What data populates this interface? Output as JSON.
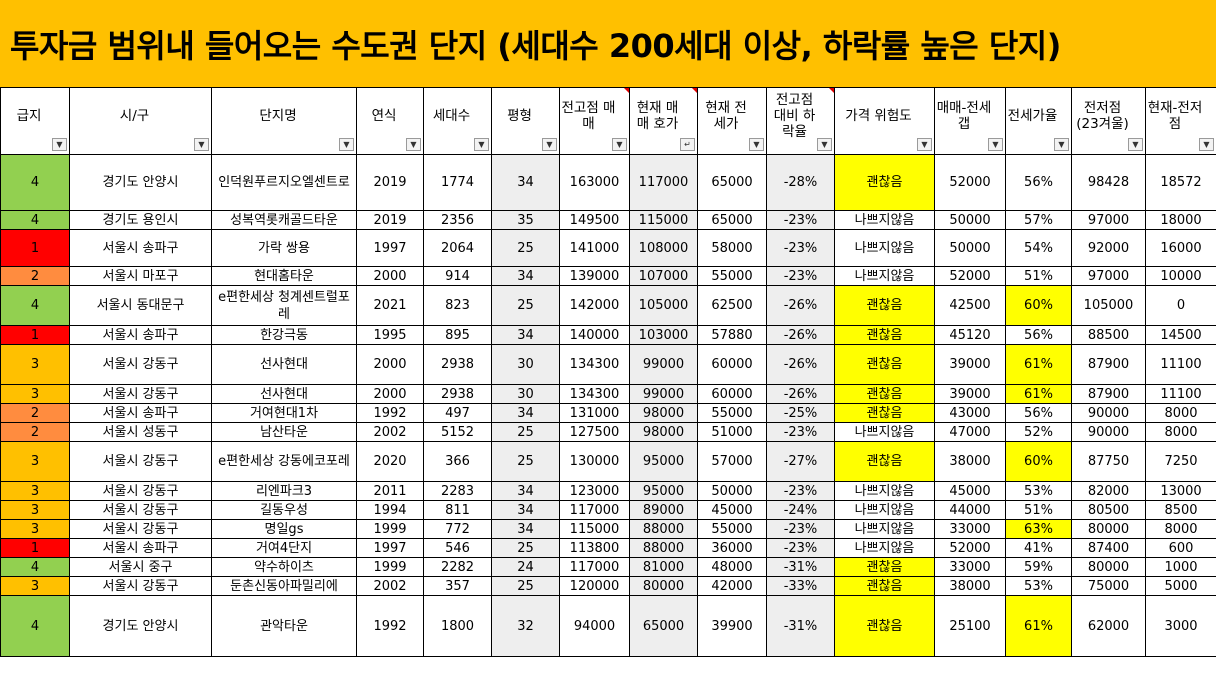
{
  "title": "투자금 범위내 들어오는 수도권 단지 (세대수 200세대 이상, 하락률 높은 단지)",
  "colors": {
    "banner": "#FFC000",
    "grade": {
      "1": "#FF0000",
      "2": "#FF8C3F",
      "3": "#FFC000",
      "4": "#92D050"
    },
    "highlight": "#FFFF00",
    "shaded": "#EEEEEE"
  },
  "columns": [
    {
      "label": "급지",
      "filter_icon": "dropdown-arrow-icon"
    },
    {
      "label": "시/구",
      "filter_icon": "dropdown-arrow-icon"
    },
    {
      "label": "단지명",
      "filter_icon": "dropdown-arrow-icon"
    },
    {
      "label": "연식",
      "filter_icon": "dropdown-arrow-icon"
    },
    {
      "label": "세대수",
      "filter_icon": "dropdown-arrow-icon"
    },
    {
      "label": "평형",
      "filter_icon": "dropdown-arrow-icon"
    },
    {
      "label": "전고점 매매",
      "filter_icon": "dropdown-arrow-icon"
    },
    {
      "label": "현재 매매 호가",
      "filter_icon": "sort-descending-icon"
    },
    {
      "label": "현재 전 세가",
      "filter_icon": "dropdown-arrow-icon"
    },
    {
      "label": "전고점 대비 하락율",
      "filter_icon": "dropdown-arrow-icon"
    },
    {
      "label": "가격 위험도",
      "filter_icon": "dropdown-arrow-icon"
    },
    {
      "label": "매매-전세갭",
      "filter_icon": "dropdown-arrow-icon"
    },
    {
      "label": "전세가율",
      "filter_icon": "dropdown-arrow-icon"
    },
    {
      "label": "전저점 (23겨울)",
      "filter_icon": "dropdown-arrow-icon"
    },
    {
      "label": "현재-전저 점",
      "filter_icon": "dropdown-arrow-icon"
    }
  ],
  "rows": [
    {
      "grade": "4",
      "region": "경기도 안양시",
      "complex": "인덕원푸르지오엘센트로",
      "year": "2019",
      "households": "1774",
      "size": "34",
      "peak": "163000",
      "price": "117000",
      "jeonse": "65000",
      "drop": "-28%",
      "risk": "괜찮음",
      "gap": "52000",
      "ratio": "56%",
      "low": "98428",
      "diff": "18572"
    },
    {
      "grade": "4",
      "region": "경기도 용인시",
      "complex": "성복역롯캐골드타운",
      "year": "2019",
      "households": "2356",
      "size": "35",
      "peak": "149500",
      "price": "115000",
      "jeonse": "65000",
      "drop": "-23%",
      "risk": "나쁘지않음",
      "gap": "50000",
      "ratio": "57%",
      "low": "97000",
      "diff": "18000"
    },
    {
      "grade": "1",
      "region": "서울시 송파구",
      "complex": "가락 쌍용",
      "year": "1997",
      "households": "2064",
      "size": "25",
      "peak": "141000",
      "price": "108000",
      "jeonse": "58000",
      "drop": "-23%",
      "risk": "나쁘지않음",
      "gap": "50000",
      "ratio": "54%",
      "low": "92000",
      "diff": "16000"
    },
    {
      "grade": "2",
      "region": "서울시 마포구",
      "complex": "현대홈타운",
      "year": "2000",
      "households": "914",
      "size": "34",
      "peak": "139000",
      "price": "107000",
      "jeonse": "55000",
      "drop": "-23%",
      "risk": "나쁘지않음",
      "gap": "52000",
      "ratio": "51%",
      "low": "97000",
      "diff": "10000"
    },
    {
      "grade": "4",
      "region": "서울시 동대문구",
      "complex": "e편한세상 청계센트럴포레",
      "year": "2021",
      "households": "823",
      "size": "25",
      "peak": "142000",
      "price": "105000",
      "jeonse": "62500",
      "drop": "-26%",
      "risk": "괜찮음",
      "gap": "42500",
      "ratio": "60%",
      "low": "105000",
      "diff": "0"
    },
    {
      "grade": "1",
      "region": "서울시 송파구",
      "complex": "한강극동",
      "year": "1995",
      "households": "895",
      "size": "34",
      "peak": "140000",
      "price": "103000",
      "jeonse": "57880",
      "drop": "-26%",
      "risk": "괜찮음",
      "gap": "45120",
      "ratio": "56%",
      "low": "88500",
      "diff": "14500"
    },
    {
      "grade": "3",
      "region": "서울시 강동구",
      "complex": "선사현대",
      "year": "2000",
      "households": "2938",
      "size": "30",
      "peak": "134300",
      "price": "99000",
      "jeonse": "60000",
      "drop": "-26%",
      "risk": "괜찮음",
      "gap": "39000",
      "ratio": "61%",
      "low": "87900",
      "diff": "11100"
    },
    {
      "grade": "3",
      "region": "서울시 강동구",
      "complex": "선사현대",
      "year": "2000",
      "households": "2938",
      "size": "30",
      "peak": "134300",
      "price": "99000",
      "jeonse": "60000",
      "drop": "-26%",
      "risk": "괜찮음",
      "gap": "39000",
      "ratio": "61%",
      "low": "87900",
      "diff": "11100"
    },
    {
      "grade": "2",
      "region": "서울시 송파구",
      "complex": "거여현대1차",
      "year": "1992",
      "households": "497",
      "size": "34",
      "peak": "131000",
      "price": "98000",
      "jeonse": "55000",
      "drop": "-25%",
      "risk": "괜찮음",
      "gap": "43000",
      "ratio": "56%",
      "low": "90000",
      "diff": "8000"
    },
    {
      "grade": "2",
      "region": "서울시 성동구",
      "complex": "남산타운",
      "year": "2002",
      "households": "5152",
      "size": "25",
      "peak": "127500",
      "price": "98000",
      "jeonse": "51000",
      "drop": "-23%",
      "risk": "나쁘지않음",
      "gap": "47000",
      "ratio": "52%",
      "low": "90000",
      "diff": "8000"
    },
    {
      "grade": "3",
      "region": "서울시 강동구",
      "complex": "e편한세상 강동에코포레",
      "year": "2020",
      "households": "366",
      "size": "25",
      "peak": "130000",
      "price": "95000",
      "jeonse": "57000",
      "drop": "-27%",
      "risk": "괜찮음",
      "gap": "38000",
      "ratio": "60%",
      "low": "87750",
      "diff": "7250"
    },
    {
      "grade": "3",
      "region": "서울시 강동구",
      "complex": "리엔파크3",
      "year": "2011",
      "households": "2283",
      "size": "34",
      "peak": "123000",
      "price": "95000",
      "jeonse": "50000",
      "drop": "-23%",
      "risk": "나쁘지않음",
      "gap": "45000",
      "ratio": "53%",
      "low": "82000",
      "diff": "13000"
    },
    {
      "grade": "3",
      "region": "서울시 강동구",
      "complex": "길동우성",
      "year": "1994",
      "households": "811",
      "size": "34",
      "peak": "117000",
      "price": "89000",
      "jeonse": "45000",
      "drop": "-24%",
      "risk": "나쁘지않음",
      "gap": "44000",
      "ratio": "51%",
      "low": "80500",
      "diff": "8500"
    },
    {
      "grade": "3",
      "region": "서울시 강동구",
      "complex": "명일gs",
      "year": "1999",
      "households": "772",
      "size": "34",
      "peak": "115000",
      "price": "88000",
      "jeonse": "55000",
      "drop": "-23%",
      "risk": "나쁘지않음",
      "gap": "33000",
      "ratio": "63%",
      "low": "80000",
      "diff": "8000"
    },
    {
      "grade": "1",
      "region": "서울시 송파구",
      "complex": "거여4단지",
      "year": "1997",
      "households": "546",
      "size": "25",
      "peak": "113800",
      "price": "88000",
      "jeonse": "36000",
      "drop": "-23%",
      "risk": "나쁘지않음",
      "gap": "52000",
      "ratio": "41%",
      "low": "87400",
      "diff": "600"
    },
    {
      "grade": "4",
      "region": "서울시 중구",
      "complex": "약수하이츠",
      "year": "1999",
      "households": "2282",
      "size": "24",
      "peak": "117000",
      "price": "81000",
      "jeonse": "48000",
      "drop": "-31%",
      "risk": "괜찮음",
      "gap": "33000",
      "ratio": "59%",
      "low": "80000",
      "diff": "1000"
    },
    {
      "grade": "3",
      "region": "서울시 강동구",
      "complex": "둔촌신동아파밀리에",
      "year": "2002",
      "households": "357",
      "size": "25",
      "peak": "120000",
      "price": "80000",
      "jeonse": "42000",
      "drop": "-33%",
      "risk": "괜찮음",
      "gap": "38000",
      "ratio": "53%",
      "low": "75000",
      "diff": "5000"
    },
    {
      "grade": "4",
      "region": "경기도 안양시",
      "complex": "관악타운",
      "year": "1992",
      "households": "1800",
      "size": "32",
      "peak": "94000",
      "price": "65000",
      "jeonse": "39900",
      "drop": "-31%",
      "risk": "괜찮음",
      "gap": "25100",
      "ratio": "61%",
      "low": "62000",
      "diff": "3000"
    }
  ]
}
